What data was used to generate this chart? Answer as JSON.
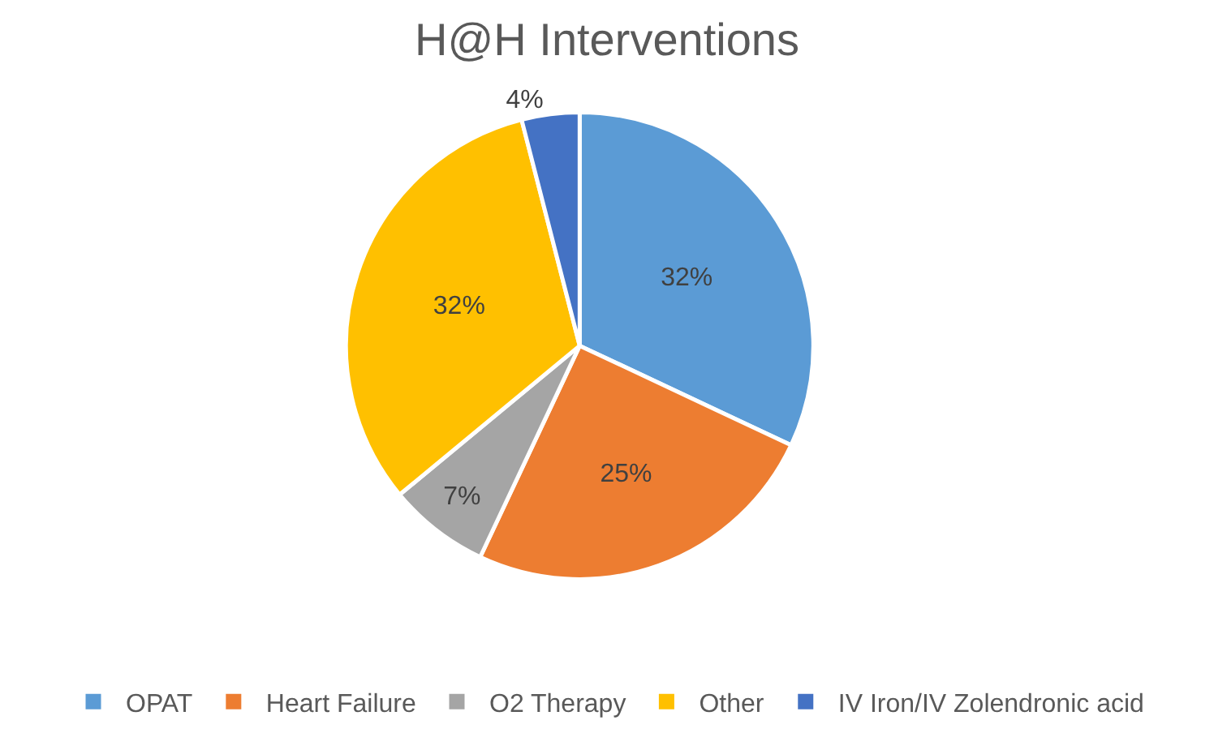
{
  "chart_data": {
    "type": "pie",
    "title": "H@H Interventions",
    "categories": [
      "OPAT",
      "Heart Failure",
      "O2 Therapy",
      "Other",
      "IV Iron/IV Zolendronic acid"
    ],
    "values": [
      32,
      25,
      7,
      32,
      4
    ],
    "colors": [
      "#5b9bd5",
      "#ed7d31",
      "#a5a5a5",
      "#ffc000",
      "#4472c4"
    ],
    "value_labels": [
      "32%",
      "25%",
      "7%",
      "32%",
      "4%"
    ],
    "legend": "bottom"
  }
}
